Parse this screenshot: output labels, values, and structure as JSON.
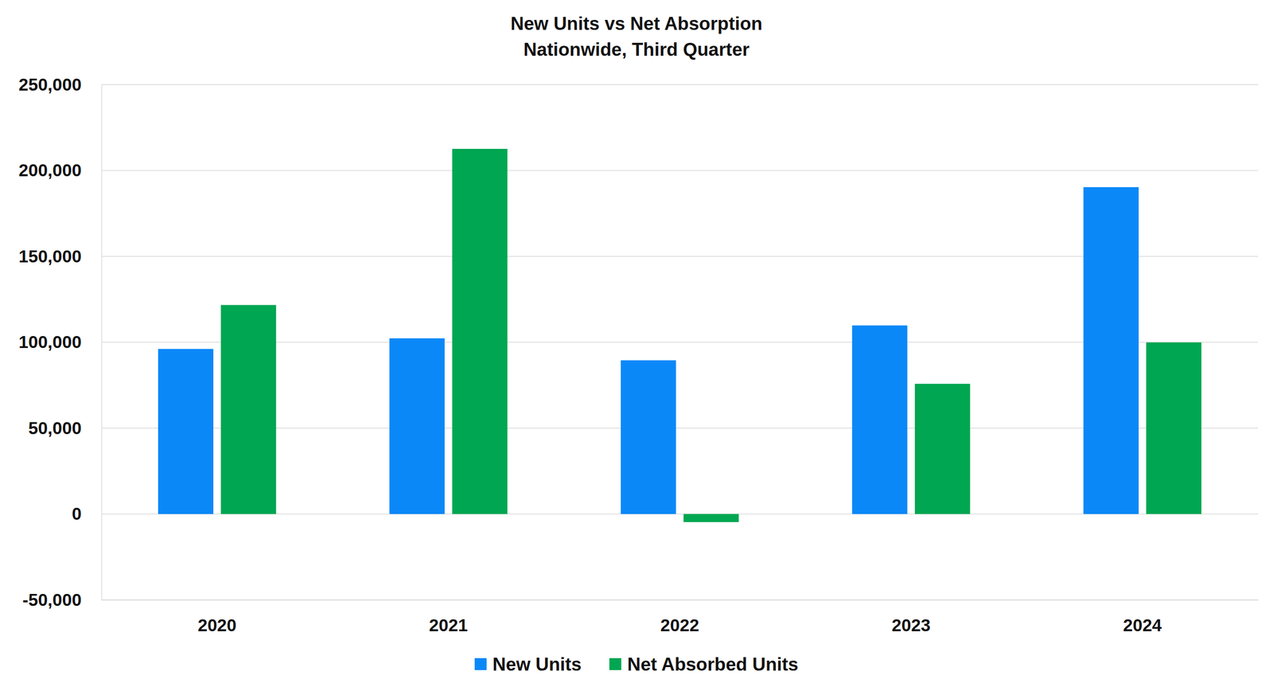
{
  "chart_data": {
    "type": "bar",
    "title": "New Units vs Net Absorption",
    "subtitle": "Nationwide, Third Quarter",
    "categories": [
      "2020",
      "2021",
      "2022",
      "2023",
      "2024"
    ],
    "series": [
      {
        "name": "New Units",
        "color": "#0a88f8",
        "values": [
          96100,
          102300,
          89500,
          109800,
          190300
        ]
      },
      {
        "name": "Net Absorbed Units",
        "color": "#00a651",
        "values": [
          121700,
          212600,
          -4700,
          75800,
          99900
        ]
      }
    ],
    "ylim": [
      -50000,
      250000
    ],
    "yticks": [
      {
        "value": -50000,
        "label": "-50,000"
      },
      0,
      {
        "value": 50000,
        "label": "50,000"
      },
      {
        "value": 100000,
        "label": "100,000"
      },
      {
        "value": 150000,
        "label": "150,000"
      },
      {
        "value": 200000,
        "label": "200,000"
      },
      {
        "value": 250000,
        "label": "250,000"
      }
    ],
    "grid": true,
    "legend": "bottom"
  }
}
